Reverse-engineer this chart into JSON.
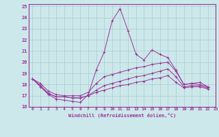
{
  "xlabel": "Windchill (Refroidissement éolien,°C)",
  "bg_color": "#cce8ea",
  "grid_color": "#aacccc",
  "line_color": "#993399",
  "xlim": [
    -0.5,
    23
  ],
  "ylim": [
    16,
    25.2
  ],
  "xticks": [
    0,
    1,
    2,
    3,
    4,
    5,
    6,
    7,
    8,
    9,
    10,
    11,
    12,
    13,
    14,
    15,
    16,
    17,
    18,
    19,
    20,
    21,
    22,
    23
  ],
  "yticks": [
    16,
    17,
    18,
    19,
    20,
    21,
    22,
    23,
    24,
    25
  ],
  "series": {
    "line1": [
      18.5,
      17.8,
      17.1,
      16.7,
      16.6,
      16.5,
      16.4,
      17.1,
      19.3,
      20.9,
      23.7,
      24.8,
      22.8,
      20.7,
      20.2,
      21.1,
      20.7,
      20.4,
      19.3,
      18.0,
      18.1,
      18.2,
      17.8
    ],
    "line2": [
      18.5,
      18.1,
      17.4,
      17.1,
      17.0,
      17.0,
      17.0,
      17.3,
      18.1,
      18.7,
      18.9,
      19.1,
      19.3,
      19.5,
      19.6,
      19.8,
      19.9,
      20.0,
      19.2,
      18.0,
      18.1,
      18.0,
      17.8
    ],
    "line3": [
      18.5,
      17.9,
      17.2,
      16.9,
      16.9,
      16.8,
      16.8,
      17.0,
      17.5,
      17.9,
      18.1,
      18.3,
      18.5,
      18.7,
      18.8,
      19.0,
      19.2,
      19.4,
      18.7,
      17.8,
      17.9,
      17.9,
      17.7
    ],
    "line4": [
      18.5,
      17.9,
      17.2,
      16.9,
      16.9,
      16.8,
      16.8,
      17.0,
      17.3,
      17.5,
      17.7,
      17.9,
      18.0,
      18.2,
      18.3,
      18.5,
      18.6,
      18.8,
      18.2,
      17.7,
      17.8,
      17.8,
      17.6
    ]
  }
}
